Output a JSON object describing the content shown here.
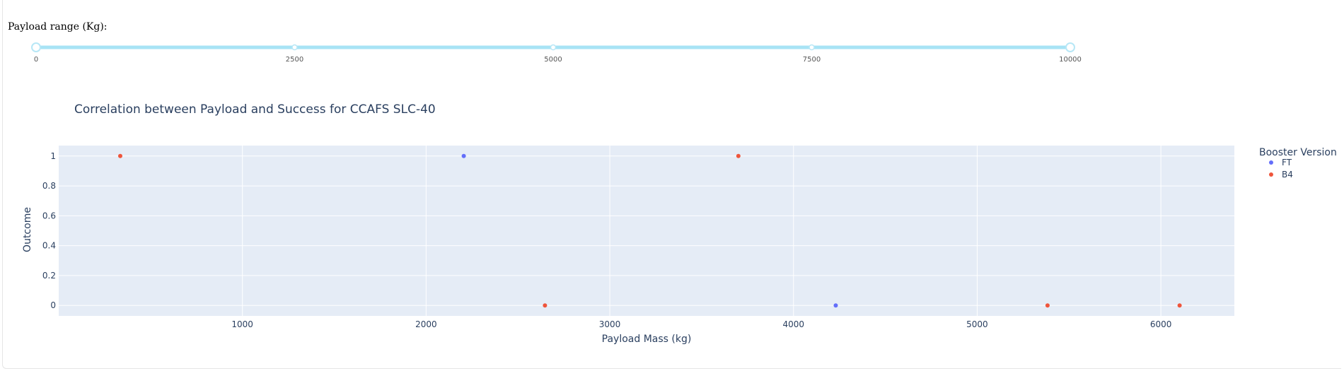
{
  "slider": {
    "label": "Payload range (Kg):",
    "min": 0,
    "max": 10000,
    "value": [
      0,
      10000
    ],
    "marks": [
      0,
      2500,
      5000,
      7500,
      10000
    ],
    "mark_labels": [
      "0",
      "2500",
      "5000",
      "7500",
      "10000"
    ],
    "track_color": "#a8e3f5",
    "handle_color": "#b7e7f6"
  },
  "chart_data": {
    "type": "scatter",
    "title": "Correlation between Payload and Success for CCAFS SLC-40",
    "xlabel": "Payload Mass (kg)",
    "ylabel": "Outcome",
    "xlim": [
      0,
      6400
    ],
    "ylim": [
      -0.07,
      1.07
    ],
    "xticks": [
      1000,
      2000,
      3000,
      4000,
      5000,
      6000
    ],
    "yticks": [
      0,
      0.2,
      0.4,
      0.6,
      0.8,
      1
    ],
    "ytick_labels": [
      "0",
      "0.2",
      "0.4",
      "0.6",
      "0.8",
      "1"
    ],
    "grid": true,
    "legend_title": "Booster Version",
    "legend_position": "top-right",
    "series": [
      {
        "name": "FT",
        "color": "#636efa",
        "points": [
          [
            2205,
            1
          ],
          [
            4230,
            0
          ]
        ]
      },
      {
        "name": "B4",
        "color": "#ef553b",
        "points": [
          [
            335,
            1
          ],
          [
            2647,
            0
          ],
          [
            3700,
            1
          ],
          [
            5383,
            0
          ],
          [
            6102,
            0
          ]
        ]
      }
    ],
    "plot_bgcolor": "#e5ecf6",
    "text_color": "#2a3f5f"
  }
}
